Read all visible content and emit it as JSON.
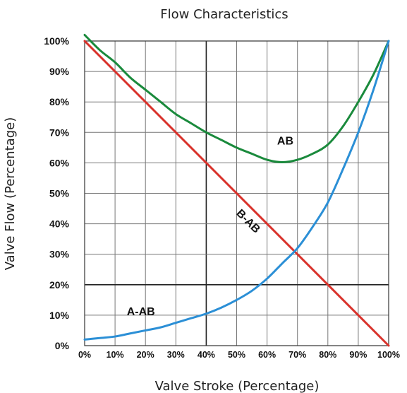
{
  "chart_data": {
    "type": "line",
    "title": "Flow Characteristics",
    "xlabel": "Valve Stroke (Percentage)",
    "ylabel": "Valve Flow (Percentage)",
    "xlim": [
      0,
      100
    ],
    "ylim": [
      0,
      100
    ],
    "grid": true,
    "legend": "inline labels",
    "x_ticks": [
      "0%",
      "10%",
      "20%",
      "30%",
      "40%",
      "50%",
      "60%",
      "70%",
      "80%",
      "90%",
      "100%"
    ],
    "y_ticks": [
      "0%",
      "10%",
      "20%",
      "30%",
      "40%",
      "50%",
      "60%",
      "70%",
      "80%",
      "90%",
      "100%"
    ],
    "series": [
      {
        "name": "AB",
        "color": "#1a8a3c",
        "x": [
          0,
          5,
          10,
          15,
          20,
          25,
          30,
          35,
          40,
          45,
          50,
          55,
          60,
          65,
          70,
          75,
          80,
          85,
          90,
          95,
          100
        ],
        "y": [
          102,
          97,
          93,
          88,
          84,
          80,
          76,
          73,
          70,
          67.5,
          65,
          63,
          61,
          60.2,
          61,
          63,
          66,
          72,
          80,
          89,
          100
        ]
      },
      {
        "name": "B-AB",
        "color": "#d9322b",
        "x": [
          0,
          100
        ],
        "y": [
          100,
          0
        ]
      },
      {
        "name": "A-AB",
        "color": "#2b8fd6",
        "x": [
          0,
          5,
          10,
          15,
          20,
          25,
          30,
          35,
          40,
          45,
          50,
          55,
          60,
          65,
          70,
          75,
          80,
          85,
          90,
          95,
          100
        ],
        "y": [
          2,
          2.5,
          3,
          4,
          5,
          6,
          7.5,
          9,
          10.5,
          12.5,
          15,
          18,
          22,
          27,
          32,
          39,
          47,
          58,
          70,
          84,
          100
        ]
      }
    ],
    "annotations": [
      {
        "text": "AB",
        "x": 66,
        "y": 66,
        "rotate": 0
      },
      {
        "text": "B-AB",
        "x": 53,
        "y": 40,
        "rotate": 45
      },
      {
        "text": "A-AB",
        "x": 18.5,
        "y": 10,
        "rotate": 0
      }
    ]
  }
}
